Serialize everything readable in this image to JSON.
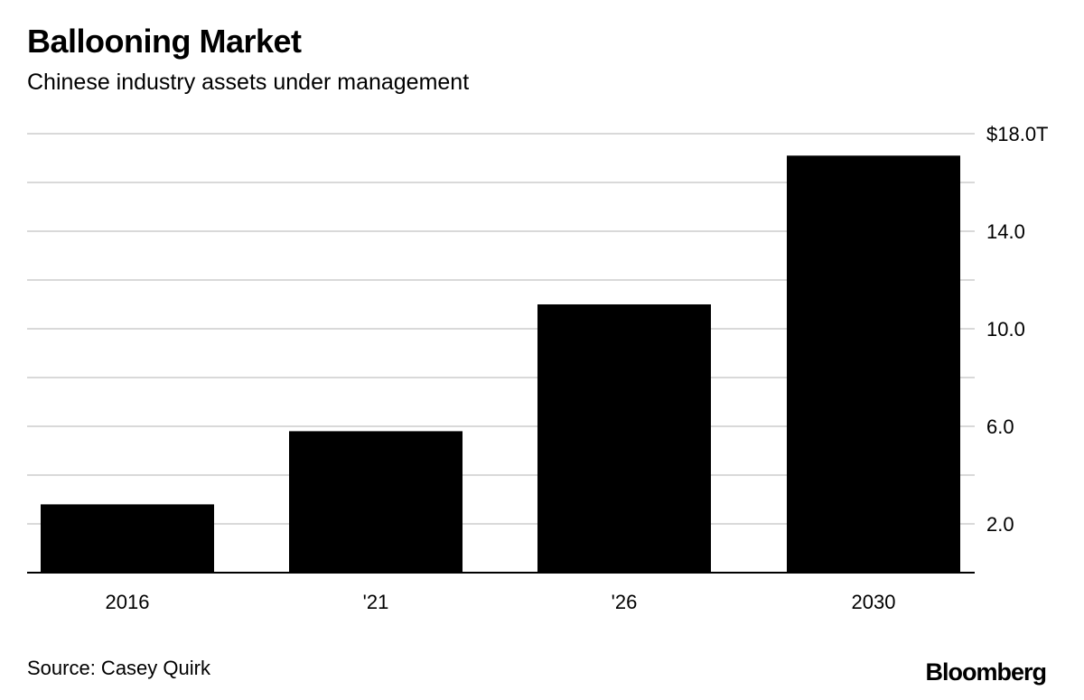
{
  "header": {
    "title": "Ballooning Market",
    "subtitle": "Chinese industry assets under management"
  },
  "footer": {
    "source": "Source: Casey Quirk",
    "brand": "Bloomberg"
  },
  "colors": {
    "bar": "#000000",
    "grid": "#d9d9d9",
    "axis": "#000000",
    "background": "#ffffff"
  },
  "chart_data": {
    "type": "bar",
    "title": "Ballooning Market",
    "subtitle": "Chinese industry assets under management",
    "xlabel": "",
    "ylabel": "",
    "categories": [
      "2016",
      "'21",
      "'26",
      "2030"
    ],
    "values": [
      2.8,
      5.8,
      11.0,
      17.1
    ],
    "unit": "trillion USD",
    "ylim": [
      0,
      18
    ],
    "yticks": [
      0,
      2,
      4,
      6,
      8,
      10,
      12,
      14,
      16,
      18
    ],
    "ytick_labels": [
      {
        "value": 2,
        "label": "2.0"
      },
      {
        "value": 6,
        "label": "6.0"
      },
      {
        "value": 10,
        "label": "10.0"
      },
      {
        "value": 14,
        "label": "14.0"
      },
      {
        "value": 18,
        "label": "$18.0T"
      }
    ],
    "grid": true,
    "axis_side": "right",
    "legend": "none"
  }
}
